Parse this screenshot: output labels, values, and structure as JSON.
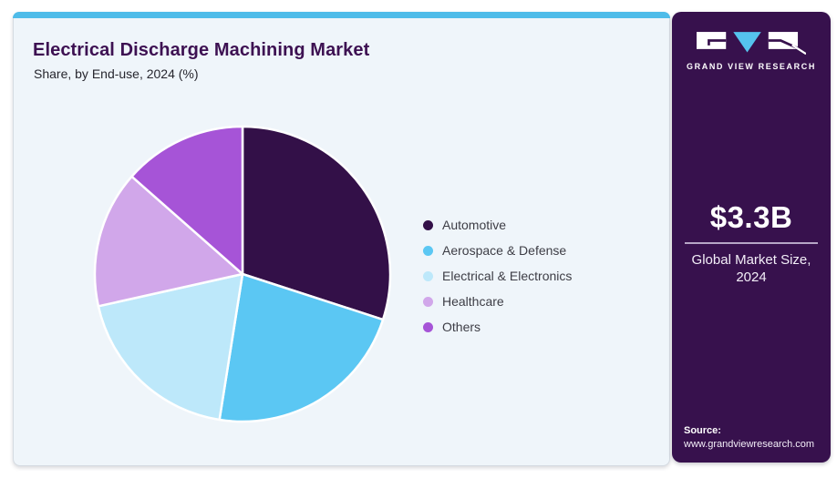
{
  "header": {
    "title": "Electrical Discharge Machining Market",
    "subtitle": "Share, by End-use, 2024 (%)"
  },
  "brand": {
    "name": "GRAND VIEW RESEARCH"
  },
  "panel": {
    "market_size_value": "$3.3B",
    "market_size_caption_line1": "Global Market Size,",
    "market_size_caption_line2": "2024",
    "source_label": "Source:",
    "source_url": "www.grandviewresearch.com"
  },
  "colors": {
    "card_background": "#eff5fa",
    "top_accent": "#4fbce9",
    "title": "#3d1152",
    "panel_background": "#37114d",
    "divider": "#b6a6c6",
    "logo_triangle": "#55c3ee"
  },
  "chart_data": {
    "type": "pie",
    "title": "Electrical Discharge Machining Market",
    "subtitle": "Share, by End-use, 2024 (%)",
    "categories": [
      "Automotive",
      "Aerospace & Defense",
      "Electrical & Electronics",
      "Healthcare",
      "Others"
    ],
    "values": [
      30,
      22.5,
      19,
      15,
      13.5
    ],
    "colors": [
      "#331048",
      "#5bc7f3",
      "#bde8fa",
      "#d1a7ea",
      "#a654d7"
    ],
    "unit": "%",
    "start_angle_deg": 0,
    "direction": "clockwise",
    "legend_position": "right",
    "data_labels": false
  }
}
